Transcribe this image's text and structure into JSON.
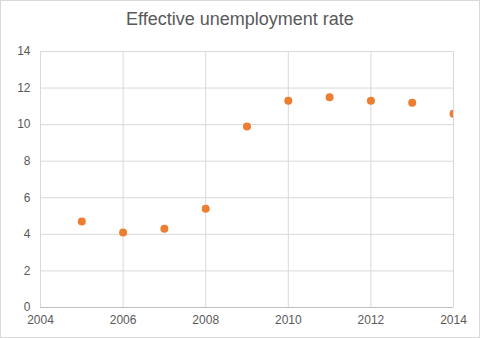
{
  "chart_data": {
    "type": "scatter",
    "title": "Effective unemployment rate",
    "x": [
      2005,
      2006,
      2007,
      2008,
      2009,
      2010,
      2011,
      2012,
      2013,
      2014
    ],
    "values": [
      4.7,
      4.1,
      4.3,
      5.4,
      9.9,
      11.3,
      11.5,
      11.3,
      11.2,
      10.6
    ],
    "color": "#ed7d31",
    "marker": "circle",
    "xlim": [
      2004,
      2014
    ],
    "xticks": [
      2004,
      2006,
      2008,
      2010,
      2012,
      2014
    ],
    "ylim": [
      0,
      14
    ],
    "yticks": [
      0,
      2,
      4,
      6,
      8,
      10,
      12,
      14
    ],
    "grid": true
  }
}
